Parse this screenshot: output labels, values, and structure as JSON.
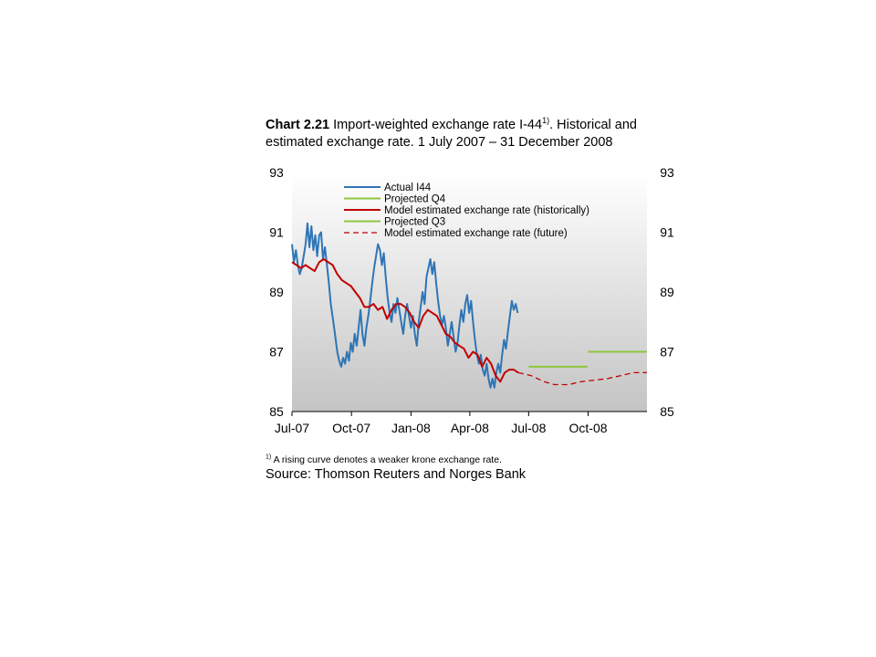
{
  "header": {
    "title_number": "Chart 2.21",
    "title_text": "Import-weighted exchange rate I-44",
    "title_sup": "1)",
    "title_rest": ". Historical and estimated exchange rate. 1 July 2007 – 31 December 2008"
  },
  "footer": {
    "footnote_mark": "1)",
    "footnote_text": "A rising curve denotes a weaker krone exchange rate.",
    "source": "Source: Thomson Reuters and Norges Bank"
  },
  "chart_data": {
    "type": "line",
    "ylim": [
      85,
      93
    ],
    "yticks": [
      85,
      87,
      89,
      91,
      93
    ],
    "xlim": [
      "2007-07-01",
      "2008-12-31"
    ],
    "xticks": [
      {
        "label": "Jul-07",
        "date": "2007-07-01"
      },
      {
        "label": "Oct-07",
        "date": "2007-10-01"
      },
      {
        "label": "Jan-08",
        "date": "2008-01-01"
      },
      {
        "label": "Apr-08",
        "date": "2008-04-01"
      },
      {
        "label": "Jul-08",
        "date": "2008-07-01"
      },
      {
        "label": "Oct-08",
        "date": "2008-10-01"
      }
    ],
    "grid": false,
    "legend_position": "top-center",
    "series": [
      {
        "name": "Actual I44",
        "color": "#2e75b6",
        "style": "solid",
        "points": [
          [
            "2007-07-01",
            90.6
          ],
          [
            "2007-07-04",
            90.0
          ],
          [
            "2007-07-07",
            90.4
          ],
          [
            "2007-07-10",
            89.9
          ],
          [
            "2007-07-13",
            89.6
          ],
          [
            "2007-07-16",
            89.8
          ],
          [
            "2007-07-19",
            90.2
          ],
          [
            "2007-07-22",
            90.6
          ],
          [
            "2007-07-25",
            91.3
          ],
          [
            "2007-07-28",
            90.5
          ],
          [
            "2007-07-31",
            91.2
          ],
          [
            "2007-08-03",
            90.4
          ],
          [
            "2007-08-06",
            90.9
          ],
          [
            "2007-08-09",
            90.2
          ],
          [
            "2007-08-12",
            90.9
          ],
          [
            "2007-08-15",
            91.0
          ],
          [
            "2007-08-18",
            90.1
          ],
          [
            "2007-08-21",
            90.5
          ],
          [
            "2007-08-24",
            89.9
          ],
          [
            "2007-08-27",
            89.3
          ],
          [
            "2007-08-30",
            88.6
          ],
          [
            "2007-09-03",
            88.0
          ],
          [
            "2007-09-06",
            87.5
          ],
          [
            "2007-09-09",
            87.0
          ],
          [
            "2007-09-12",
            86.7
          ],
          [
            "2007-09-15",
            86.5
          ],
          [
            "2007-09-18",
            86.8
          ],
          [
            "2007-09-21",
            86.6
          ],
          [
            "2007-09-24",
            87.0
          ],
          [
            "2007-09-27",
            86.7
          ],
          [
            "2007-09-30",
            87.3
          ],
          [
            "2007-10-03",
            87.0
          ],
          [
            "2007-10-06",
            87.6
          ],
          [
            "2007-10-09",
            87.2
          ],
          [
            "2007-10-12",
            87.8
          ],
          [
            "2007-10-15",
            88.4
          ],
          [
            "2007-10-18",
            87.6
          ],
          [
            "2007-10-21",
            87.2
          ],
          [
            "2007-10-24",
            87.8
          ],
          [
            "2007-10-27",
            88.2
          ],
          [
            "2007-10-30",
            88.7
          ],
          [
            "2007-11-02",
            89.3
          ],
          [
            "2007-11-05",
            89.8
          ],
          [
            "2007-11-08",
            90.2
          ],
          [
            "2007-11-11",
            90.6
          ],
          [
            "2007-11-14",
            90.4
          ],
          [
            "2007-11-17",
            89.9
          ],
          [
            "2007-11-20",
            90.3
          ],
          [
            "2007-11-23",
            89.5
          ],
          [
            "2007-11-26",
            88.8
          ],
          [
            "2007-11-29",
            88.3
          ],
          [
            "2007-12-02",
            88.0
          ],
          [
            "2007-12-05",
            88.6
          ],
          [
            "2007-12-08",
            88.3
          ],
          [
            "2007-12-11",
            88.8
          ],
          [
            "2007-12-14",
            88.4
          ],
          [
            "2007-12-17",
            88.0
          ],
          [
            "2007-12-20",
            87.6
          ],
          [
            "2007-12-23",
            88.2
          ],
          [
            "2007-12-26",
            88.6
          ],
          [
            "2007-12-29",
            88.2
          ],
          [
            "2008-01-01",
            87.8
          ],
          [
            "2008-01-04",
            88.2
          ],
          [
            "2008-01-07",
            87.6
          ],
          [
            "2008-01-10",
            87.2
          ],
          [
            "2008-01-13",
            88.0
          ],
          [
            "2008-01-16",
            88.5
          ],
          [
            "2008-01-19",
            89.0
          ],
          [
            "2008-01-22",
            88.6
          ],
          [
            "2008-01-25",
            89.5
          ],
          [
            "2008-01-28",
            89.8
          ],
          [
            "2008-01-31",
            90.1
          ],
          [
            "2008-02-03",
            89.6
          ],
          [
            "2008-02-06",
            90.0
          ],
          [
            "2008-02-09",
            89.3
          ],
          [
            "2008-02-12",
            88.7
          ],
          [
            "2008-02-15",
            88.2
          ],
          [
            "2008-02-18",
            87.9
          ],
          [
            "2008-02-21",
            88.2
          ],
          [
            "2008-02-24",
            87.8
          ],
          [
            "2008-02-27",
            87.2
          ],
          [
            "2008-03-01",
            87.6
          ],
          [
            "2008-03-04",
            88.0
          ],
          [
            "2008-03-07",
            87.5
          ],
          [
            "2008-03-10",
            87.0
          ],
          [
            "2008-03-13",
            87.3
          ],
          [
            "2008-03-16",
            87.9
          ],
          [
            "2008-03-19",
            88.4
          ],
          [
            "2008-03-22",
            88.0
          ],
          [
            "2008-03-25",
            88.6
          ],
          [
            "2008-03-28",
            88.9
          ],
          [
            "2008-03-31",
            88.3
          ],
          [
            "2008-04-03",
            88.7
          ],
          [
            "2008-04-06",
            88.0
          ],
          [
            "2008-04-09",
            87.4
          ],
          [
            "2008-04-12",
            86.9
          ],
          [
            "2008-04-15",
            86.6
          ],
          [
            "2008-04-18",
            86.9
          ],
          [
            "2008-04-21",
            86.4
          ],
          [
            "2008-04-24",
            86.2
          ],
          [
            "2008-04-27",
            86.6
          ],
          [
            "2008-04-30",
            86.1
          ],
          [
            "2008-05-03",
            85.8
          ],
          [
            "2008-05-06",
            86.1
          ],
          [
            "2008-05-09",
            85.8
          ],
          [
            "2008-05-12",
            86.3
          ],
          [
            "2008-05-15",
            86.6
          ],
          [
            "2008-05-18",
            86.3
          ],
          [
            "2008-05-21",
            86.9
          ],
          [
            "2008-05-24",
            87.4
          ],
          [
            "2008-05-27",
            87.1
          ],
          [
            "2008-05-30",
            87.7
          ],
          [
            "2008-06-02",
            88.2
          ],
          [
            "2008-06-05",
            88.7
          ],
          [
            "2008-06-08",
            88.4
          ],
          [
            "2008-06-11",
            88.6
          ],
          [
            "2008-06-14",
            88.3
          ]
        ]
      },
      {
        "name": "Projected Q4",
        "color": "#8dc63f",
        "style": "solid",
        "points": [
          [
            "2008-10-01",
            87.0
          ],
          [
            "2008-12-31",
            87.0
          ]
        ]
      },
      {
        "name": "Model estimated exchange rate (historically)",
        "color": "#c00000",
        "style": "solid",
        "points": [
          [
            "2007-07-01",
            90.0
          ],
          [
            "2007-07-08",
            89.9
          ],
          [
            "2007-07-15",
            89.8
          ],
          [
            "2007-07-22",
            89.9
          ],
          [
            "2007-07-29",
            89.8
          ],
          [
            "2007-08-05",
            89.7
          ],
          [
            "2007-08-12",
            90.0
          ],
          [
            "2007-08-19",
            90.1
          ],
          [
            "2007-08-26",
            90.0
          ],
          [
            "2007-09-02",
            89.9
          ],
          [
            "2007-09-09",
            89.6
          ],
          [
            "2007-09-16",
            89.4
          ],
          [
            "2007-09-23",
            89.3
          ],
          [
            "2007-09-30",
            89.2
          ],
          [
            "2007-10-07",
            89.0
          ],
          [
            "2007-10-14",
            88.8
          ],
          [
            "2007-10-21",
            88.5
          ],
          [
            "2007-10-28",
            88.5
          ],
          [
            "2007-11-04",
            88.6
          ],
          [
            "2007-11-11",
            88.4
          ],
          [
            "2007-11-18",
            88.5
          ],
          [
            "2007-11-25",
            88.1
          ],
          [
            "2007-12-02",
            88.4
          ],
          [
            "2007-12-09",
            88.6
          ],
          [
            "2007-12-16",
            88.6
          ],
          [
            "2007-12-23",
            88.5
          ],
          [
            "2007-12-30",
            88.3
          ],
          [
            "2008-01-06",
            88.0
          ],
          [
            "2008-01-13",
            87.8
          ],
          [
            "2008-01-20",
            88.2
          ],
          [
            "2008-01-27",
            88.4
          ],
          [
            "2008-02-03",
            88.3
          ],
          [
            "2008-02-10",
            88.2
          ],
          [
            "2008-02-17",
            87.9
          ],
          [
            "2008-02-24",
            87.6
          ],
          [
            "2008-03-02",
            87.5
          ],
          [
            "2008-03-09",
            87.3
          ],
          [
            "2008-03-16",
            87.2
          ],
          [
            "2008-03-23",
            87.1
          ],
          [
            "2008-03-30",
            86.8
          ],
          [
            "2008-04-06",
            87.0
          ],
          [
            "2008-04-13",
            86.9
          ],
          [
            "2008-04-20",
            86.5
          ],
          [
            "2008-04-27",
            86.8
          ],
          [
            "2008-05-04",
            86.6
          ],
          [
            "2008-05-11",
            86.2
          ],
          [
            "2008-05-18",
            86.0
          ],
          [
            "2008-05-25",
            86.3
          ],
          [
            "2008-06-01",
            86.4
          ],
          [
            "2008-06-08",
            86.4
          ],
          [
            "2008-06-15",
            86.3
          ]
        ]
      },
      {
        "name": "Projected Q3",
        "color": "#8dc63f",
        "style": "solid",
        "points": [
          [
            "2008-07-01",
            86.5
          ],
          [
            "2008-09-30",
            86.5
          ]
        ]
      },
      {
        "name": "Model estimated exchange rate (future)",
        "color": "#c00000",
        "style": "dashed",
        "points": [
          [
            "2008-06-15",
            86.3
          ],
          [
            "2008-07-05",
            86.2
          ],
          [
            "2008-07-25",
            86.0
          ],
          [
            "2008-08-10",
            85.9
          ],
          [
            "2008-09-01",
            85.9
          ],
          [
            "2008-09-20",
            86.0
          ],
          [
            "2008-10-10",
            86.05
          ],
          [
            "2008-10-30",
            86.1
          ],
          [
            "2008-11-20",
            86.2
          ],
          [
            "2008-12-10",
            86.3
          ],
          [
            "2008-12-31",
            86.3
          ]
        ]
      }
    ]
  }
}
